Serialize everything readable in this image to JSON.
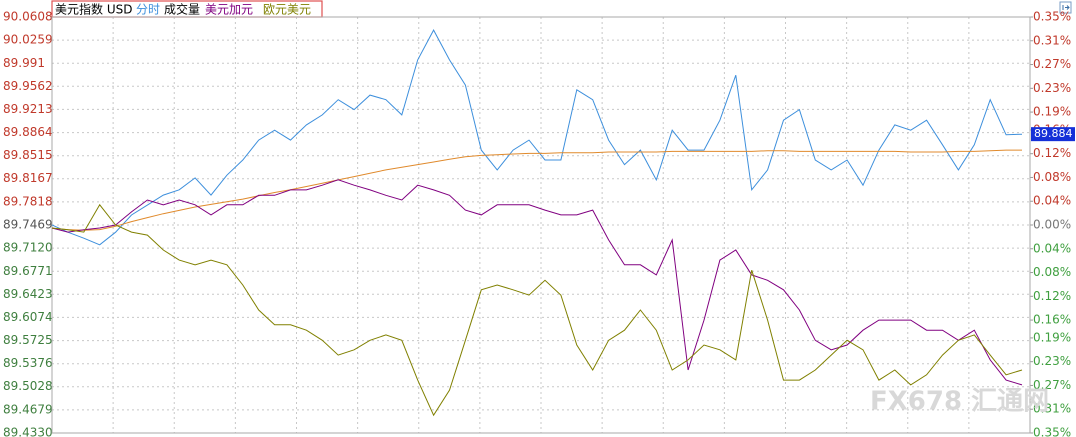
{
  "chart_data": {
    "type": "line",
    "title": "美元指数 USD",
    "volume_label": "成交量",
    "watermark": "FX678 汇通网",
    "ylim": [
      89.433,
      90.0608
    ],
    "yticks": [
      90.0608,
      90.0259,
      89.991,
      {
        "value": 89.9562,
        "label": "89.9562"
      },
      89.9213,
      89.8864,
      89.8515,
      89.8167,
      89.7818,
      89.7469,
      {
        "value": 89.712,
        "label": "89.7120"
      },
      89.6771,
      89.6423,
      89.6074,
      89.5725,
      89.5376,
      89.5028,
      89.4679,
      {
        "value": 89.433,
        "label": "89.4330"
      }
    ],
    "y2lim": [
      -0.35,
      0.35
    ],
    "y2ticks": [
      {
        "value": 0.35,
        "label": "0.35%"
      },
      {
        "value": 0.31,
        "label": "0.31%"
      },
      {
        "value": 0.27,
        "label": "0.27%"
      },
      {
        "value": 0.23,
        "label": "0.23%"
      },
      {
        "value": 0.19,
        "label": "0.19%"
      },
      {
        "value": 0.16,
        "label": "0.16%"
      },
      {
        "value": 0.12,
        "label": "0.12%"
      },
      {
        "value": 0.08,
        "label": "0.08%"
      },
      {
        "value": 0.04,
        "label": "0.04%"
      },
      {
        "value": 0,
        "label": "0.00%"
      },
      {
        "value": -0.04,
        "label": "0.04%"
      },
      {
        "value": -0.08,
        "label": "0.08%"
      },
      {
        "value": -0.12,
        "label": "0.12%"
      },
      {
        "value": -0.16,
        "label": "0.16%"
      },
      {
        "value": -0.19,
        "label": "0.19%"
      },
      {
        "value": -0.23,
        "label": "0.23%"
      },
      {
        "value": -0.27,
        "label": "0.27%"
      },
      {
        "value": -0.31,
        "label": "0.31%"
      },
      {
        "value": -0.35,
        "label": "0.35%"
      }
    ],
    "grid": true,
    "series": [
      {
        "name": "分时",
        "color": "#3d8fdc",
        "last_label": "89.884",
        "values": [
          89.747,
          89.736,
          89.727,
          89.717,
          89.736,
          89.762,
          89.777,
          89.792,
          89.8,
          89.818,
          89.792,
          89.822,
          89.845,
          89.875,
          89.89,
          89.875,
          89.898,
          89.913,
          89.936,
          89.921,
          89.943,
          89.936,
          89.913,
          89.996,
          90.041,
          89.996,
          89.958,
          89.86,
          89.83,
          89.86,
          89.875,
          89.845,
          89.845,
          89.951,
          89.936,
          89.875,
          89.838,
          89.86,
          89.815,
          89.89,
          89.86,
          89.86,
          89.905,
          89.973,
          89.8,
          89.83,
          89.905,
          89.921,
          89.845,
          89.83,
          89.845,
          89.807,
          89.86,
          89.898,
          89.89,
          89.905,
          89.868,
          89.83,
          89.868,
          89.936,
          89.883,
          89.884
        ]
      },
      {
        "color": "#e08a2c",
        "values": [
          89.742,
          89.74,
          89.739,
          89.74,
          89.745,
          89.752,
          89.758,
          89.764,
          89.769,
          89.774,
          89.778,
          89.782,
          89.786,
          89.791,
          89.796,
          89.8,
          89.805,
          89.81,
          89.815,
          89.82,
          89.825,
          89.83,
          89.834,
          89.838,
          89.842,
          89.846,
          89.85,
          89.852,
          89.853,
          89.854,
          89.855,
          89.855,
          89.856,
          89.856,
          89.856,
          89.857,
          89.857,
          89.857,
          89.857,
          89.858,
          89.858,
          89.858,
          89.858,
          89.858,
          89.858,
          89.859,
          89.859,
          89.858,
          89.858,
          89.858,
          89.858,
          89.858,
          89.858,
          89.858,
          89.857,
          89.857,
          89.857,
          89.858,
          89.858,
          89.859,
          89.86,
          89.86
        ]
      },
      {
        "name": "美元加元",
        "color": "#800080",
        "axis": "y2",
        "values": [
          -0.005,
          -0.012,
          -0.008,
          -0.005,
          0,
          0.022,
          0.042,
          0.034,
          0.042,
          0.034,
          0.017,
          0.034,
          0.034,
          0.05,
          0.05,
          0.059,
          0.059,
          0.067,
          0.076,
          0.067,
          0.059,
          0.05,
          0.042,
          0.067,
          0.059,
          0.05,
          0.025,
          0.017,
          0.034,
          0.034,
          0.034,
          0.025,
          0.017,
          0.017,
          0.025,
          -0.025,
          -0.067,
          -0.067,
          -0.084,
          -0.025,
          -0.244,
          -0.16,
          -0.059,
          -0.042,
          -0.084,
          -0.093,
          -0.109,
          -0.143,
          -0.194,
          -0.21,
          -0.202,
          -0.177,
          -0.16,
          -0.16,
          -0.16,
          -0.177,
          -0.177,
          -0.194,
          -0.177,
          -0.227,
          -0.261,
          -0.269
        ]
      },
      {
        "name": "欧元美元",
        "color": "#808000",
        "axis": "y2",
        "values": [
          -0.005,
          -0.008,
          -0.012,
          0.034,
          0,
          -0.012,
          -0.017,
          -0.042,
          -0.059,
          -0.067,
          -0.059,
          -0.067,
          -0.101,
          -0.143,
          -0.168,
          -0.168,
          -0.177,
          -0.194,
          -0.219,
          -0.21,
          -0.194,
          -0.185,
          -0.194,
          -0.261,
          -0.32,
          -0.278,
          -0.194,
          -0.109,
          -0.101,
          -0.109,
          -0.118,
          -0.093,
          -0.118,
          -0.202,
          -0.244,
          -0.194,
          -0.177,
          -0.143,
          -0.177,
          -0.244,
          -0.227,
          -0.202,
          -0.21,
          -0.227,
          -0.076,
          -0.16,
          -0.261,
          -0.261,
          -0.244,
          -0.219,
          -0.194,
          -0.21,
          -0.261,
          -0.244,
          -0.269,
          -0.252,
          -0.219,
          -0.194,
          -0.185,
          -0.219,
          -0.252,
          -0.244
        ]
      }
    ]
  }
}
